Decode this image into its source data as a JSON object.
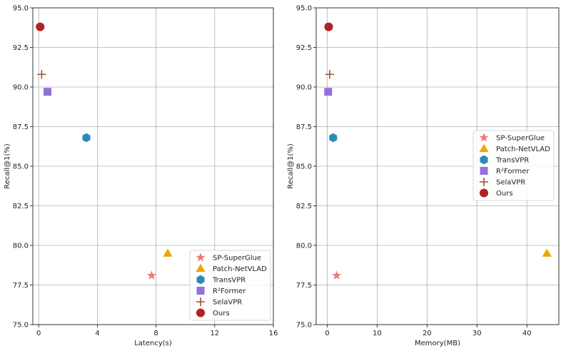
{
  "chart_data": [
    {
      "type": "scatter",
      "title": "",
      "xlabel": "Latency(s)",
      "ylabel": "Recall@1(%)",
      "xlim": [
        -0.4,
        16
      ],
      "ylim": [
        75.0,
        95.0
      ],
      "xticks": [
        0,
        4,
        8,
        12,
        16
      ],
      "yticks": [
        75.0,
        77.5,
        80.0,
        82.5,
        85.0,
        87.5,
        90.0,
        92.5,
        95.0
      ],
      "grid": true,
      "legend_position": "lower-right",
      "series": [
        {
          "name": "SP-SuperGlue",
          "marker": "star",
          "color": "#f07878",
          "x": 7.7,
          "y": 78.1
        },
        {
          "name": "Patch-NetVLAD",
          "marker": "triangle",
          "color": "#f0a500",
          "x": 8.8,
          "y": 79.5
        },
        {
          "name": "TransVPR",
          "marker": "hexagon",
          "color": "#2a8bbb",
          "x": 3.25,
          "y": 86.8
        },
        {
          "name": "R²Former",
          "marker": "square",
          "color": "#9370db",
          "x": 0.6,
          "y": 89.7
        },
        {
          "name": "SelaVPR",
          "marker": "plus",
          "color": "#a0522d",
          "x": 0.2,
          "y": 90.8
        },
        {
          "name": "Ours",
          "marker": "circle",
          "color": "#b22222",
          "x": 0.1,
          "y": 93.8
        }
      ]
    },
    {
      "type": "scatter",
      "title": "",
      "xlabel": "Memory(MB)",
      "ylabel": "Recall@1(%)",
      "xlim": [
        -2.2,
        46.4
      ],
      "ylim": [
        75.0,
        95.0
      ],
      "xticks": [
        0,
        10,
        20,
        30,
        40
      ],
      "yticks": [
        75.0,
        77.5,
        80.0,
        82.5,
        85.0,
        87.5,
        90.0,
        92.5,
        95.0
      ],
      "grid": true,
      "legend_position": "center-right",
      "series": [
        {
          "name": "SP-SuperGlue",
          "marker": "star",
          "color": "#f07878",
          "x": 1.9,
          "y": 78.1
        },
        {
          "name": "Patch-NetVLAD",
          "marker": "triangle",
          "color": "#f0a500",
          "x": 44.0,
          "y": 79.5
        },
        {
          "name": "TransVPR",
          "marker": "hexagon",
          "color": "#2a8bbb",
          "x": 1.2,
          "y": 86.8
        },
        {
          "name": "R²Former",
          "marker": "square",
          "color": "#9370db",
          "x": 0.2,
          "y": 89.7
        },
        {
          "name": "SelaVPR",
          "marker": "plus",
          "color": "#a0522d",
          "x": 0.5,
          "y": 90.8
        },
        {
          "name": "Ours",
          "marker": "circle",
          "color": "#b22222",
          "x": 0.3,
          "y": 93.8
        }
      ]
    }
  ]
}
